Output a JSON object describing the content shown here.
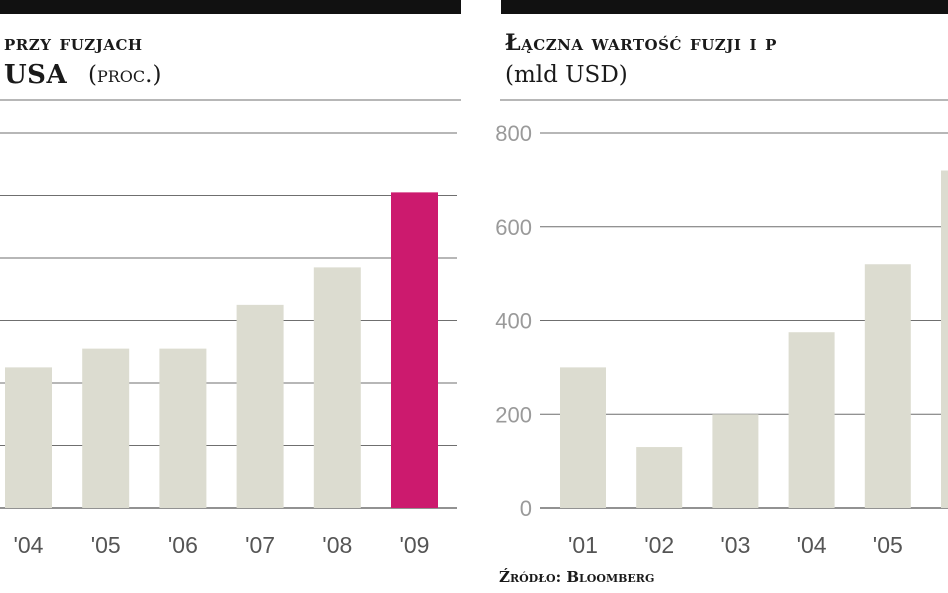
{
  "left_panel": {
    "title_line1": "przy fuzjach",
    "title_line2_bold": "USA",
    "title_line2_unit": "(proc.)"
  },
  "right_panel": {
    "title_line1": "Łączna wartość fuzji i p",
    "title_line2_unit": "(mld USD)"
  },
  "source": "Źródło: Bloomberg",
  "colors": {
    "bar": "#dcdcd0",
    "highlight": "#cc1a6e",
    "grid": "#6f6f6f",
    "axis_text": "#9a9a9a",
    "topbar": "#111111"
  },
  "chart_data": [
    {
      "type": "bar",
      "categories": [
        "'04",
        "'05",
        "'06",
        "'07",
        "'08",
        "'09"
      ],
      "values": [
        22.5,
        25.5,
        25.5,
        32.5,
        38.5,
        50.5
      ],
      "highlight_index": 5,
      "ylim": [
        0,
        60
      ],
      "title": "przy fuzjach USA (proc.)",
      "xlabel": "",
      "ylabel": "",
      "grid": true
    },
    {
      "type": "bar",
      "categories": [
        "'01",
        "'02",
        "'03",
        "'04",
        "'05"
      ],
      "values": [
        300,
        130,
        200,
        375,
        520
      ],
      "ylim": [
        0,
        800
      ],
      "yticks": [
        0,
        200,
        400,
        600,
        800
      ],
      "title": "Łączna wartość fuzji i p",
      "xlabel": "",
      "ylabel": "(mld USD)",
      "grid": true,
      "clipped_partial_bar": 720
    }
  ]
}
